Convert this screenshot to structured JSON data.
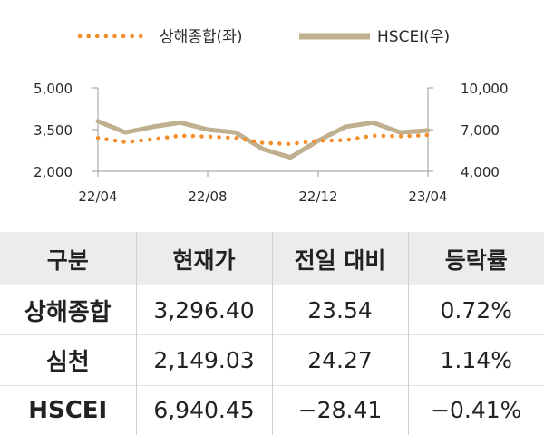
{
  "chart_data": {
    "type": "line",
    "legend": [
      {
        "name": "상해종합(좌)",
        "color": "#f28e2b",
        "style": "dotted"
      },
      {
        "name": "HSCEI(우)",
        "color": "#bfb08f",
        "style": "solid"
      }
    ],
    "legend_placement": "top",
    "x_ticks": [
      "22/04",
      "22/08",
      "22/12",
      "23/04"
    ],
    "x_range": [
      "22/04",
      "23/04"
    ],
    "y_left_ticks": [
      "5,000",
      "3,500",
      "2,000"
    ],
    "y_left_range": [
      2000,
      5000
    ],
    "y_right_ticks": [
      "10,000",
      "7,000",
      "4,000"
    ],
    "y_right_range": [
      4000,
      10000
    ],
    "grid": false,
    "series": [
      {
        "name": "상해종합(좌)",
        "axis": "left",
        "x": [
          "22/04",
          "22/05",
          "22/06",
          "22/07",
          "22/08",
          "22/09",
          "22/10",
          "22/11",
          "22/12",
          "23/01",
          "23/02",
          "23/03",
          "23/04"
        ],
        "values": [
          3200,
          3050,
          3150,
          3280,
          3250,
          3200,
          3020,
          2980,
          3100,
          3120,
          3280,
          3260,
          3300
        ]
      },
      {
        "name": "HSCEI(우)",
        "axis": "right",
        "x": [
          "22/04",
          "22/05",
          "22/06",
          "22/07",
          "22/08",
          "22/09",
          "22/10",
          "22/11",
          "22/12",
          "23/01",
          "23/02",
          "23/03",
          "23/04"
        ],
        "values": [
          7600,
          6800,
          7200,
          7500,
          7000,
          6800,
          5600,
          5000,
          6200,
          7200,
          7500,
          6800,
          6940
        ]
      }
    ]
  },
  "table": {
    "headers": [
      "구분",
      "현재가",
      "전일 대비",
      "등락률"
    ],
    "rows": [
      [
        "상해종합",
        "3,296.40",
        "23.54",
        "0.72%"
      ],
      [
        "심천",
        "2,149.03",
        "24.27",
        "1.14%"
      ],
      [
        "HSCEI",
        "6,940.45",
        "−28.41",
        "−0.41%"
      ]
    ]
  }
}
